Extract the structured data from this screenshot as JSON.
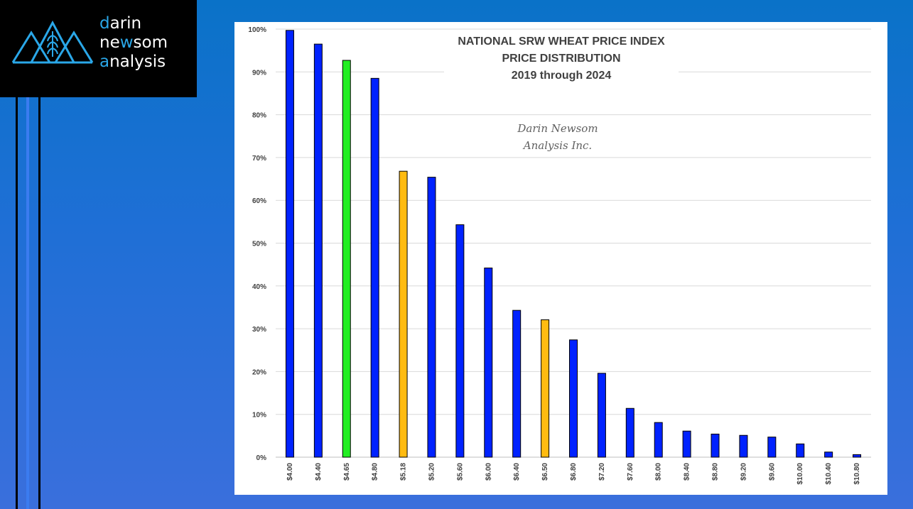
{
  "logo": {
    "line1_accent": "d",
    "line1_rest": "arin",
    "line2_pre": "ne",
    "line2_accent": "w",
    "line2_rest": "som",
    "line3_accent": "a",
    "line3_rest": "nalysis",
    "icon": "mountain-wheat-icon",
    "accent_color": "#2aa7e8"
  },
  "watermark": {
    "line1": "Darin Newsom",
    "line2": "Analysis Inc."
  },
  "chart_data": {
    "type": "bar",
    "title_lines": [
      "NATIONAL SRW WHEAT PRICE INDEX",
      "PRICE DISTRIBUTION",
      "2019 through 2024"
    ],
    "categories": [
      "$4.00",
      "$4.40",
      "$4.65",
      "$4.80",
      "$5.18",
      "$5.20",
      "$5.60",
      "$6.00",
      "$6.40",
      "$6.50",
      "$6.80",
      "$7.20",
      "$7.60",
      "$8.00",
      "$8.40",
      "$8.80",
      "$9.20",
      "$9.60",
      "$10.00",
      "$10.40",
      "$10.80"
    ],
    "values": [
      99.7,
      96.5,
      92.7,
      88.5,
      66.8,
      65.4,
      54.3,
      44.2,
      34.3,
      32.1,
      27.4,
      19.6,
      11.4,
      8.1,
      6.1,
      5.4,
      5.1,
      4.7,
      3.1,
      1.2,
      0.6
    ],
    "bar_colors": [
      "#0022ff",
      "#0022ff",
      "#22ee22",
      "#0022ff",
      "#ffbb11",
      "#0022ff",
      "#0022ff",
      "#0022ff",
      "#0022ff",
      "#ffbb11",
      "#0022ff",
      "#0022ff",
      "#0022ff",
      "#0022ff",
      "#0022ff",
      "#0022ff",
      "#0022ff",
      "#0022ff",
      "#0022ff",
      "#0022ff",
      "#0022ff"
    ],
    "yticks": [
      "0%",
      "10%",
      "20%",
      "30%",
      "40%",
      "50%",
      "60%",
      "70%",
      "80%",
      "90%",
      "100%"
    ],
    "ylim": [
      0,
      100
    ],
    "grid": true,
    "legend": "none"
  }
}
